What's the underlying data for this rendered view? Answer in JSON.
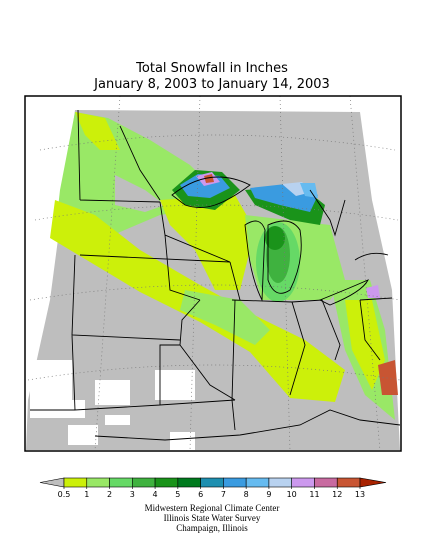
{
  "title": [
    "Total Snowfall in Inches",
    "January 8, 2003 to January 14, 2003"
  ],
  "legend": {
    "ticks": [
      0.5,
      1,
      2,
      3,
      4,
      5,
      6,
      7,
      8,
      9,
      10,
      11,
      12,
      13
    ],
    "colors": [
      "#bebebe",
      "#ccf00a",
      "#99e866",
      "#66d966",
      "#3fb23f",
      "#1a931a",
      "#007a1e",
      "#1e8fb0",
      "#3a9be0",
      "#66bbf0",
      "#b8d2f0",
      "#cc99ee",
      "#c86aa0",
      "#c85533",
      "#a82200"
    ]
  },
  "credits": [
    "Midwestern Regional Climate Center",
    "Illinois State Water Survey",
    "Champaign, Illinois"
  ]
}
